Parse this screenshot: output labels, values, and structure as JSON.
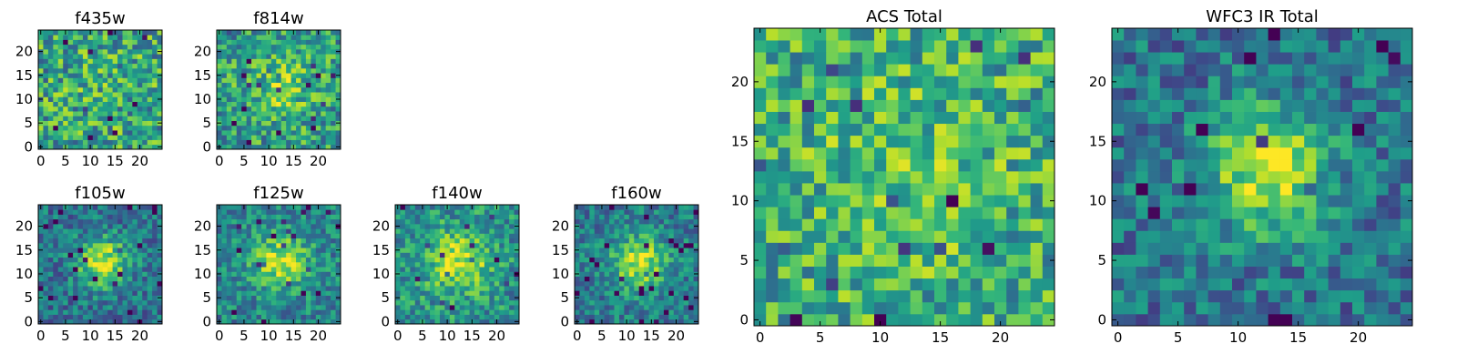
{
  "chart_data": [
    {
      "type": "heatmap",
      "title": "f435w",
      "xlim": [
        0,
        25
      ],
      "ylim": [
        0,
        25
      ],
      "xticks": [
        0,
        5,
        10,
        15,
        20
      ],
      "yticks": [
        0,
        5,
        10,
        15,
        20
      ],
      "grid": false,
      "colormap": "viridis",
      "seed": 11,
      "peak": 0.05,
      "noise": 0.62,
      "base": 0.58,
      "spread": 5
    },
    {
      "type": "heatmap",
      "title": "f814w",
      "xlim": [
        0,
        25
      ],
      "ylim": [
        0,
        25
      ],
      "xticks": [
        0,
        5,
        10,
        15,
        20
      ],
      "yticks": [
        0,
        5,
        10,
        15,
        20
      ],
      "grid": false,
      "colormap": "viridis",
      "seed": 23,
      "peak": 0.22,
      "noise": 0.55,
      "base": 0.55,
      "spread": 5
    },
    {
      "type": "heatmap",
      "title": "f105w",
      "xlim": [
        0,
        25
      ],
      "ylim": [
        0,
        25
      ],
      "xticks": [
        0,
        5,
        10,
        15,
        20
      ],
      "yticks": [
        0,
        5,
        10,
        15,
        20
      ],
      "grid": false,
      "colormap": "viridis",
      "seed": 37,
      "peak": 0.55,
      "noise": 0.42,
      "base": 0.38,
      "spread": 3.6
    },
    {
      "type": "heatmap",
      "title": "f125w",
      "xlim": [
        0,
        25
      ],
      "ylim": [
        0,
        25
      ],
      "xticks": [
        0,
        5,
        10,
        15,
        20
      ],
      "yticks": [
        0,
        5,
        10,
        15,
        20
      ],
      "grid": false,
      "colormap": "viridis",
      "seed": 41,
      "peak": 0.45,
      "noise": 0.42,
      "base": 0.45,
      "spread": 4
    },
    {
      "type": "heatmap",
      "title": "f140w",
      "xlim": [
        0,
        25
      ],
      "ylim": [
        0,
        25
      ],
      "xticks": [
        0,
        5,
        10,
        15,
        20
      ],
      "yticks": [
        0,
        5,
        10,
        15,
        20
      ],
      "grid": false,
      "colormap": "viridis",
      "seed": 53,
      "peak": 0.42,
      "noise": 0.45,
      "base": 0.5,
      "spread": 4.5
    },
    {
      "type": "heatmap",
      "title": "f160w",
      "xlim": [
        0,
        25
      ],
      "ylim": [
        0,
        25
      ],
      "xticks": [
        0,
        5,
        10,
        15,
        20
      ],
      "yticks": [
        0,
        5,
        10,
        15,
        20
      ],
      "grid": false,
      "colormap": "viridis",
      "seed": 67,
      "peak": 0.5,
      "noise": 0.4,
      "base": 0.42,
      "spread": 3.8
    },
    {
      "type": "heatmap",
      "title": "ACS Total",
      "xlim": [
        0,
        25
      ],
      "ylim": [
        0,
        25
      ],
      "xticks": [
        0,
        5,
        10,
        15,
        20
      ],
      "yticks": [
        0,
        5,
        10,
        15,
        20
      ],
      "grid": false,
      "colormap": "viridis",
      "seed": 79,
      "peak": 0.12,
      "noise": 0.55,
      "base": 0.62,
      "spread": 5
    },
    {
      "type": "heatmap",
      "title": "WFC3 IR Total",
      "xlim": [
        0,
        25
      ],
      "ylim": [
        0,
        25
      ],
      "xticks": [
        0,
        5,
        10,
        15,
        20
      ],
      "yticks": [
        0,
        5,
        10,
        15,
        20
      ],
      "grid": false,
      "colormap": "viridis",
      "seed": 97,
      "peak": 0.55,
      "noise": 0.42,
      "base": 0.38,
      "spread": 3.6
    }
  ]
}
